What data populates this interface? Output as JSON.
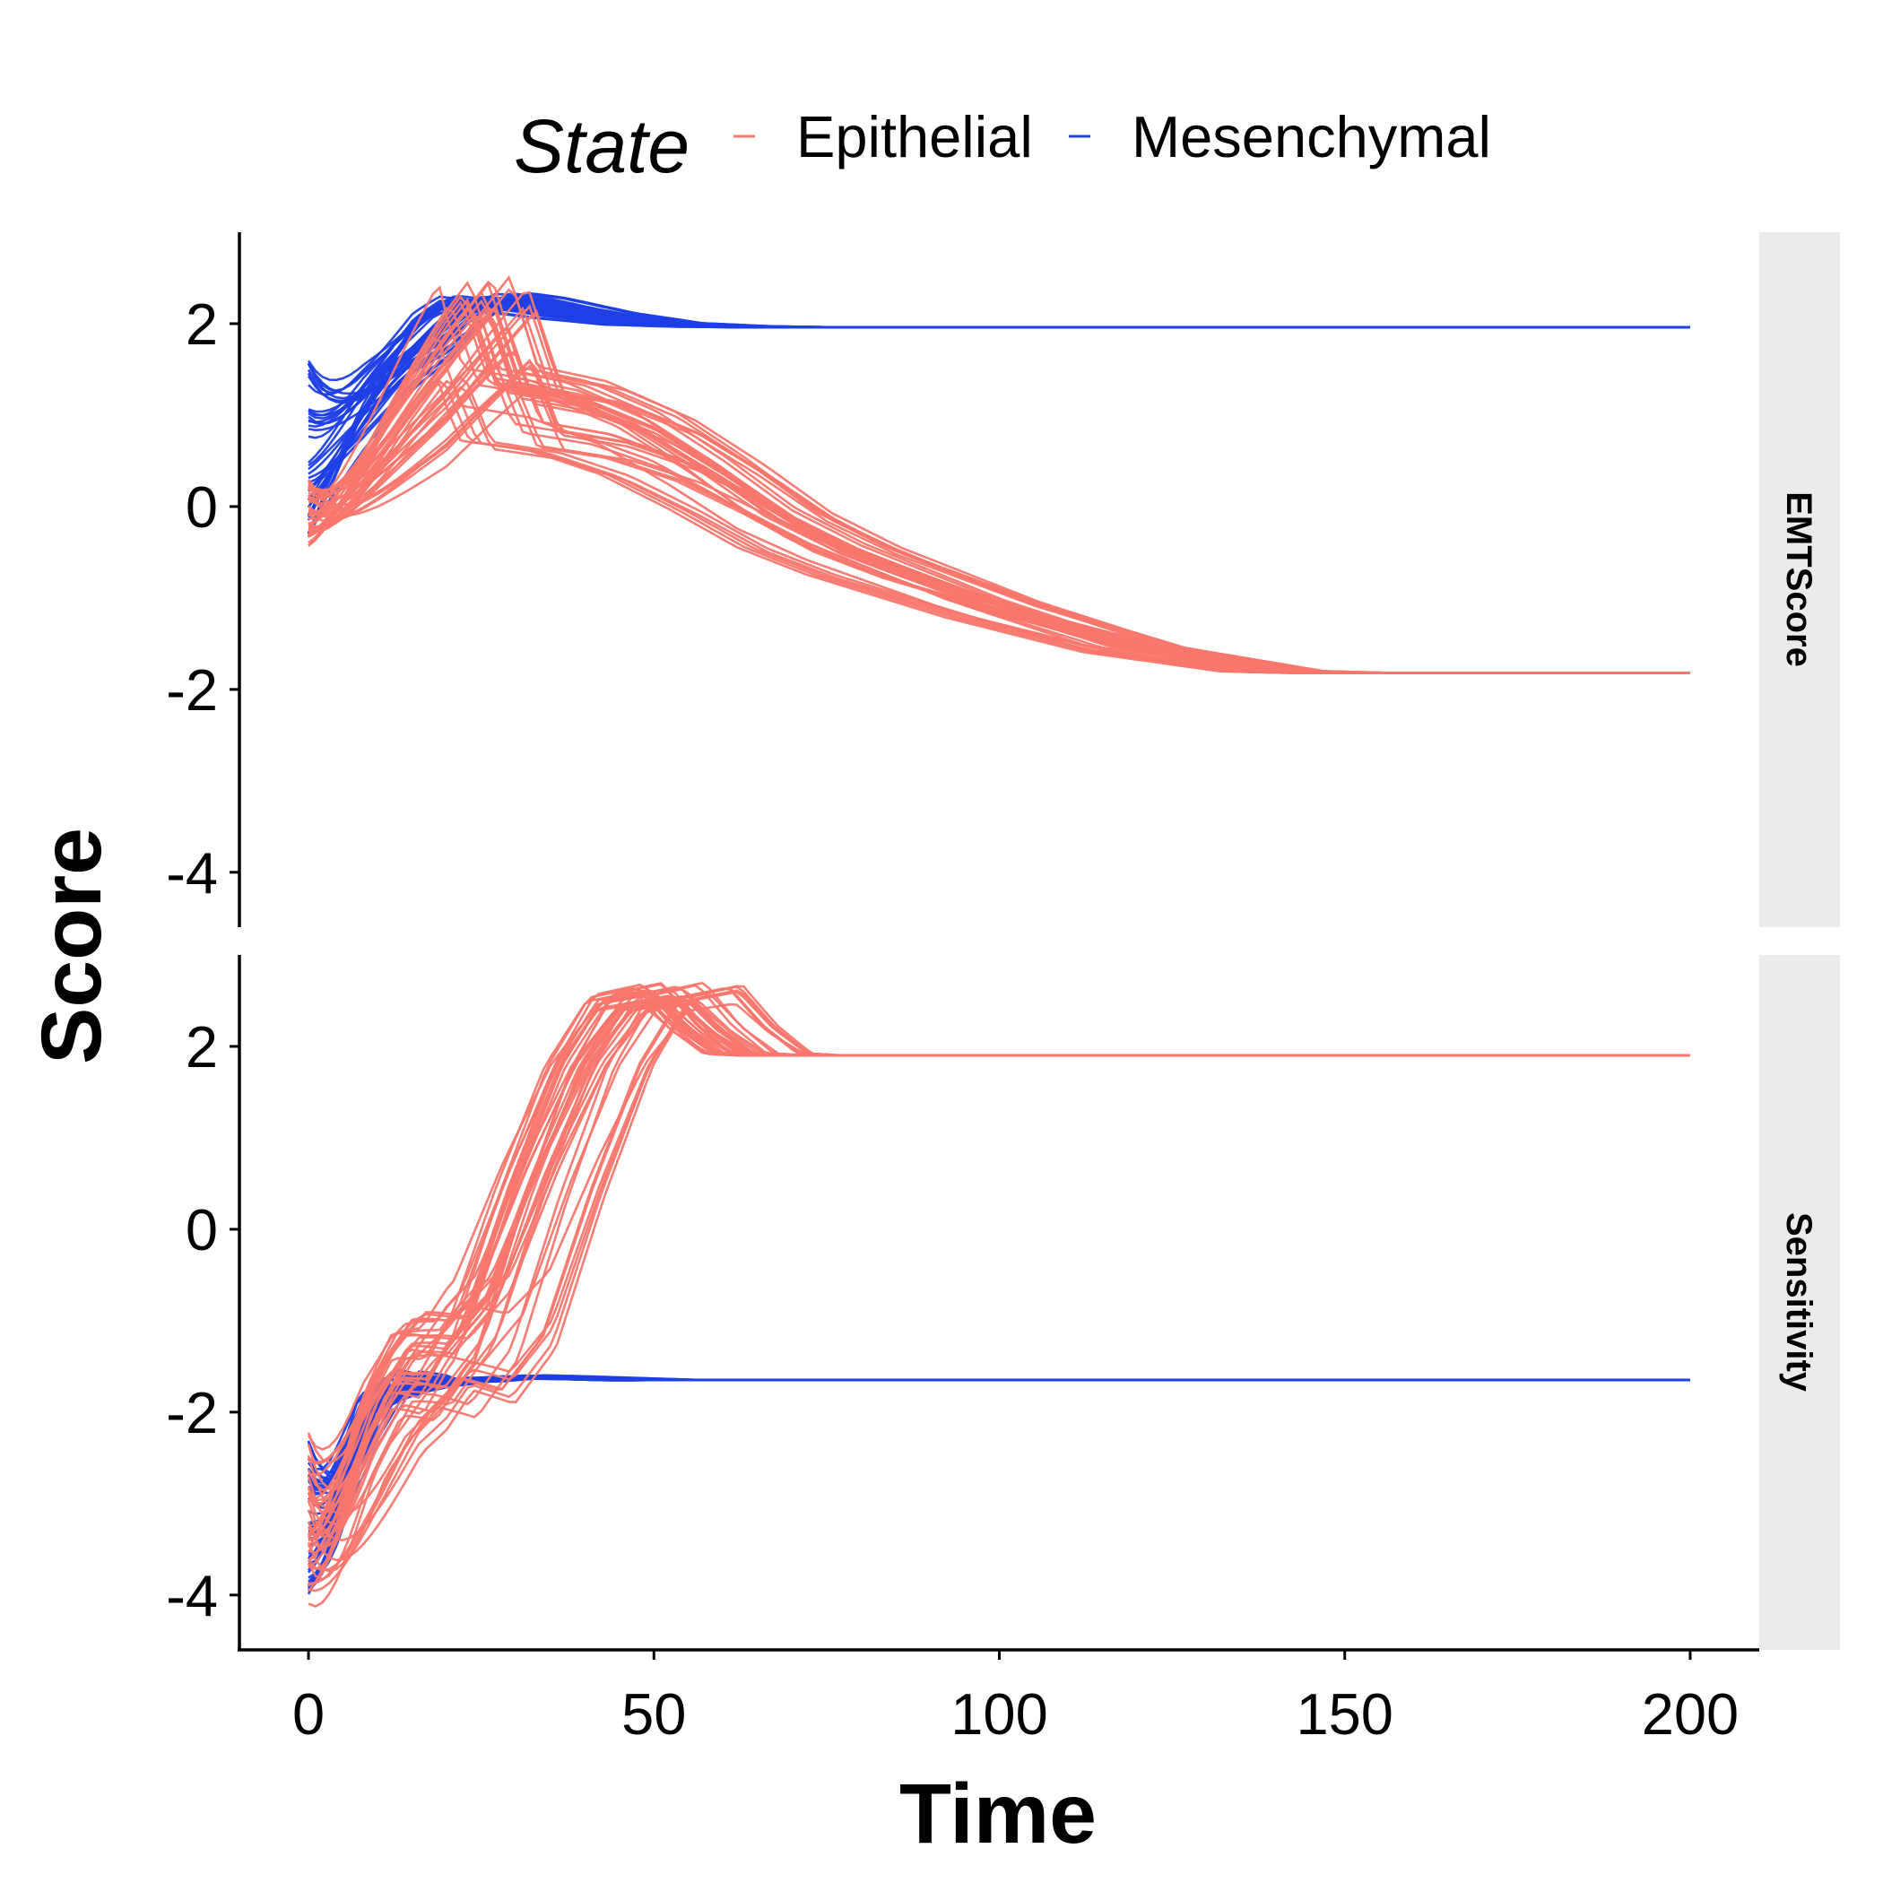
{
  "chart_data": {
    "type": "line",
    "facets": [
      "EMTScore",
      "Sensitivity"
    ],
    "xlabel": "Time",
    "ylabel": "Score",
    "xlim": [
      -10,
      210
    ],
    "ylim": [
      -4.6,
      3.0
    ],
    "x_ticks": [
      0,
      50,
      100,
      150,
      200
    ],
    "y_ticks": [
      -4,
      -2,
      0,
      2
    ],
    "grid": false,
    "legend": {
      "title": "State",
      "position": "top",
      "entries": [
        {
          "label": "Epithelial",
          "color": "#F8766D"
        },
        {
          "label": "Mesenchymal",
          "color": "#1F3FE6"
        }
      ]
    },
    "colors": {
      "Epithelial": "#F8766D",
      "Mesenchymal": "#1F3FE6"
    },
    "series": [
      {
        "name": "Mesenchymal",
        "facet": "EMTScore",
        "trajectories": 40,
        "representative": {
          "x": [
            0,
            10,
            20,
            25,
            30,
            40,
            50,
            60,
            70,
            100,
            150,
            200
          ],
          "y": [
            0.6,
            1.5,
            2.15,
            2.3,
            2.25,
            2.1,
            2.0,
            1.97,
            1.96,
            1.96,
            1.96,
            1.96
          ]
        },
        "start_range": [
          -0.4,
          1.6
        ],
        "steady_state": 1.96
      },
      {
        "name": "Epithelial",
        "facet": "EMTScore",
        "trajectories": 40,
        "representative": {
          "x": [
            0,
            10,
            20,
            26,
            30,
            40,
            50,
            60,
            70,
            80,
            100,
            120,
            140,
            150,
            200
          ],
          "y": [
            -0.2,
            0.7,
            1.6,
            2.1,
            1.2,
            1.05,
            0.75,
            0.3,
            -0.2,
            -0.55,
            -1.1,
            -1.55,
            -1.8,
            -1.82,
            -1.82
          ]
        },
        "start_range": [
          -0.45,
          0.3
        ],
        "steady_state": -1.82
      },
      {
        "name": "Mesenchymal",
        "facet": "Sensitivity",
        "trajectories": 40,
        "representative": {
          "x": [
            0,
            3,
            6,
            10,
            14,
            20,
            30,
            50,
            100,
            200
          ],
          "y": [
            -3.5,
            -3.0,
            -2.2,
            -1.45,
            -1.6,
            -1.65,
            -1.6,
            -1.65,
            -1.65,
            -1.65
          ]
        },
        "start_range": [
          -4.0,
          -2.3
        ],
        "steady_state": -1.65
      },
      {
        "name": "Epithelial",
        "facet": "Sensitivity",
        "trajectories": 40,
        "representative": {
          "x": [
            0,
            5,
            10,
            16,
            22,
            28,
            35,
            42,
            48,
            55,
            60,
            65,
            70,
            100,
            200
          ],
          "y": [
            -4.0,
            -3.0,
            -2.0,
            -1.4,
            -1.55,
            -1.0,
            0.5,
            1.8,
            2.5,
            2.6,
            2.2,
            1.92,
            1.9,
            1.9,
            1.9
          ]
        },
        "start_range": [
          -4.1,
          -2.2
        ],
        "steady_state": 1.9
      }
    ]
  }
}
